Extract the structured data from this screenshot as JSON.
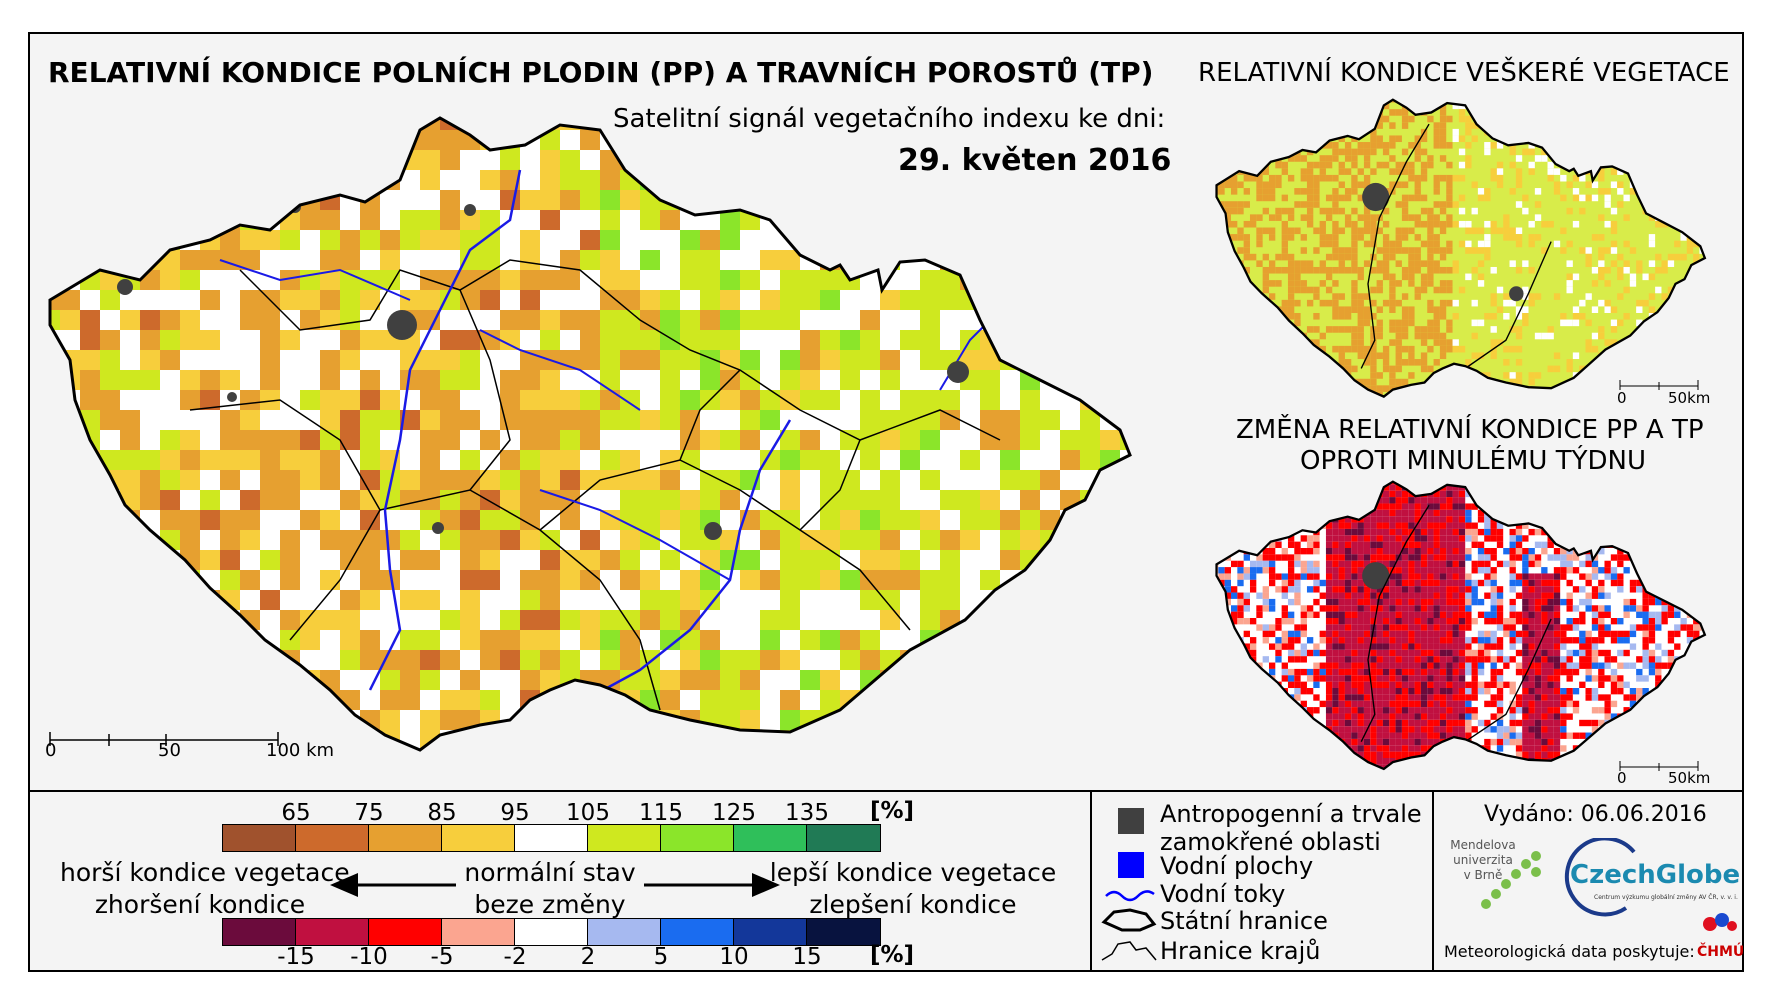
{
  "main_map": {
    "title": "RELATIVNÍ KONDICE POLNÍCH PLODIN (PP) A TRAVNÍCH POROSTŮ (TP)",
    "subtitle": "Satelitní signál vegetačního indexu ke dni:",
    "date": "29. květen 2016",
    "scale": {
      "labels": [
        "0",
        "50",
        "100 km"
      ]
    }
  },
  "right_top": {
    "title": "RELATIVNÍ KONDICE VEŠKERÉ VEGETACE",
    "scale": {
      "labels": [
        "0",
        "50km"
      ]
    }
  },
  "right_bottom": {
    "title_line1": "ZMĚNA RELATIVNÍ KONDICE PP A TP",
    "title_line2": "OPROTI MINULÉMU TÝDNU",
    "scale": {
      "labels": [
        "0",
        "50km"
      ]
    }
  },
  "condition_legend": {
    "ticks": [
      "65",
      "75",
      "85",
      "95",
      "105",
      "115",
      "125",
      "135"
    ],
    "unit": "[%]",
    "colors": [
      "#a0522d",
      "#cd6a2c",
      "#e6a030",
      "#f7ce3c",
      "#ffffff",
      "#cfe81f",
      "#8be52a",
      "#2fbf5a",
      "#207a55"
    ]
  },
  "change_legend": {
    "ticks": [
      "-15",
      "-10",
      "-5",
      "-2",
      "2",
      "5",
      "10",
      "15"
    ],
    "unit": "[%]",
    "colors": [
      "#6b0b3c",
      "#c01040",
      "#ff0000",
      "#fba590",
      "#ffffff",
      "#a6b9f0",
      "#1a6cf0",
      "#13379a",
      "#08133f"
    ]
  },
  "arrows": {
    "left_line1": "horší kondice vegetace",
    "left_line2": "zhoršení kondice",
    "center_line1": "normální stav",
    "center_line2": "beze změny",
    "right_line1": "lepší kondice vegetace",
    "right_line2": "zlepšení kondice"
  },
  "map_legend": {
    "items": [
      {
        "label_line1": "Antropogenní a trvale",
        "label_line2": "zamokřené oblasti",
        "icon": "gray-square",
        "color": "#404040"
      },
      {
        "label_line1": "Vodní plochy",
        "icon": "blue-square",
        "color": "#0000ff"
      },
      {
        "label_line1": "Vodní toky",
        "icon": "river-line",
        "color": "#0000ff"
      },
      {
        "label_line1": "Státní hranice",
        "icon": "border-outline",
        "color": "#000000"
      },
      {
        "label_line1": "Hranice krajů",
        "icon": "region-outline",
        "color": "#000000"
      }
    ]
  },
  "footer": {
    "issued": "Vydáno: 06.06.2016",
    "mendel_line1": "Mendelova",
    "mendel_line2": "univerzita",
    "mendel_line3": "v Brně",
    "czechglobe": "CzechGlobe",
    "czechglobe_sub": "Centrum výzkumu globální změny AV ČR, v. v. i.",
    "meteo": "Meteorologická data poskytuje:",
    "chmu": "ČHMÚ"
  }
}
